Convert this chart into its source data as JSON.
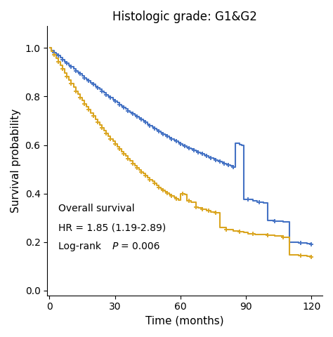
{
  "title": "Histologic grade: G1&G2",
  "xlabel": "Time (months)",
  "ylabel": "Survival probability",
  "blue_color": "#4472C4",
  "gold_color": "#DAA520",
  "ylim": [
    -0.02,
    1.09
  ],
  "xlim": [
    -1,
    125
  ],
  "yticks": [
    0.0,
    0.2,
    0.4,
    0.6,
    0.8,
    1.0
  ],
  "xticks": [
    0,
    30,
    60,
    90,
    120
  ],
  "blue_km": [
    [
      0,
      1.0
    ],
    [
      1,
      0.99
    ],
    [
      2,
      0.98
    ],
    [
      3,
      0.975
    ],
    [
      4,
      0.968
    ],
    [
      5,
      0.96
    ],
    [
      6,
      0.952
    ],
    [
      7,
      0.944
    ],
    [
      8,
      0.938
    ],
    [
      9,
      0.93
    ],
    [
      10,
      0.922
    ],
    [
      11,
      0.914
    ],
    [
      12,
      0.906
    ],
    [
      13,
      0.9
    ],
    [
      14,
      0.893
    ],
    [
      15,
      0.886
    ],
    [
      16,
      0.878
    ],
    [
      17,
      0.871
    ],
    [
      18,
      0.864
    ],
    [
      19,
      0.857
    ],
    [
      20,
      0.85
    ],
    [
      21,
      0.843
    ],
    [
      22,
      0.836
    ],
    [
      23,
      0.829
    ],
    [
      24,
      0.822
    ],
    [
      25,
      0.815
    ],
    [
      26,
      0.808
    ],
    [
      27,
      0.801
    ],
    [
      28,
      0.795
    ],
    [
      29,
      0.788
    ],
    [
      30,
      0.781
    ],
    [
      31,
      0.775
    ],
    [
      32,
      0.768
    ],
    [
      33,
      0.762
    ],
    [
      34,
      0.755
    ],
    [
      35,
      0.748
    ],
    [
      36,
      0.742
    ],
    [
      37,
      0.736
    ],
    [
      38,
      0.729
    ],
    [
      39,
      0.723
    ],
    [
      40,
      0.717
    ],
    [
      41,
      0.711
    ],
    [
      42,
      0.705
    ],
    [
      43,
      0.699
    ],
    [
      44,
      0.693
    ],
    [
      45,
      0.687
    ],
    [
      46,
      0.681
    ],
    [
      47,
      0.675
    ],
    [
      48,
      0.669
    ],
    [
      49,
      0.663
    ],
    [
      50,
      0.658
    ],
    [
      51,
      0.652
    ],
    [
      52,
      0.646
    ],
    [
      53,
      0.641
    ],
    [
      54,
      0.635
    ],
    [
      55,
      0.63
    ],
    [
      56,
      0.625
    ],
    [
      57,
      0.62
    ],
    [
      58,
      0.615
    ],
    [
      59,
      0.61
    ],
    [
      60,
      0.605
    ],
    [
      61,
      0.6
    ],
    [
      62,
      0.595
    ],
    [
      63,
      0.591
    ],
    [
      64,
      0.587
    ],
    [
      65,
      0.583
    ],
    [
      66,
      0.579
    ],
    [
      67,
      0.575
    ],
    [
      68,
      0.571
    ],
    [
      69,
      0.567
    ],
    [
      70,
      0.563
    ],
    [
      71,
      0.559
    ],
    [
      72,
      0.555
    ],
    [
      73,
      0.551
    ],
    [
      74,
      0.547
    ],
    [
      75,
      0.543
    ],
    [
      76,
      0.539
    ],
    [
      77,
      0.536
    ],
    [
      78,
      0.532
    ],
    [
      79,
      0.528
    ],
    [
      80,
      0.524
    ],
    [
      81,
      0.521
    ],
    [
      82,
      0.517
    ],
    [
      83,
      0.514
    ],
    [
      84,
      0.51
    ],
    [
      85,
      0.607
    ],
    [
      87,
      0.603
    ],
    [
      88,
      0.6
    ],
    [
      89,
      0.375
    ],
    [
      93,
      0.37
    ],
    [
      95,
      0.365
    ],
    [
      98,
      0.36
    ],
    [
      100,
      0.29
    ],
    [
      103,
      0.287
    ],
    [
      107,
      0.283
    ],
    [
      110,
      0.2
    ],
    [
      114,
      0.195
    ],
    [
      118,
      0.192
    ],
    [
      120,
      0.19
    ]
  ],
  "gold_km": [
    [
      0,
      1.0
    ],
    [
      1,
      0.987
    ],
    [
      2,
      0.973
    ],
    [
      3,
      0.958
    ],
    [
      4,
      0.943
    ],
    [
      5,
      0.928
    ],
    [
      6,
      0.913
    ],
    [
      7,
      0.898
    ],
    [
      8,
      0.883
    ],
    [
      9,
      0.868
    ],
    [
      10,
      0.853
    ],
    [
      11,
      0.838
    ],
    [
      12,
      0.823
    ],
    [
      13,
      0.81
    ],
    [
      14,
      0.797
    ],
    [
      15,
      0.784
    ],
    [
      16,
      0.771
    ],
    [
      17,
      0.758
    ],
    [
      18,
      0.745
    ],
    [
      19,
      0.732
    ],
    [
      20,
      0.72
    ],
    [
      21,
      0.707
    ],
    [
      22,
      0.695
    ],
    [
      23,
      0.683
    ],
    [
      24,
      0.671
    ],
    [
      25,
      0.659
    ],
    [
      26,
      0.648
    ],
    [
      27,
      0.637
    ],
    [
      28,
      0.626
    ],
    [
      29,
      0.615
    ],
    [
      30,
      0.604
    ],
    [
      31,
      0.594
    ],
    [
      32,
      0.584
    ],
    [
      33,
      0.574
    ],
    [
      34,
      0.564
    ],
    [
      35,
      0.554
    ],
    [
      36,
      0.544
    ],
    [
      37,
      0.534
    ],
    [
      38,
      0.524
    ],
    [
      39,
      0.515
    ],
    [
      40,
      0.506
    ],
    [
      41,
      0.498
    ],
    [
      42,
      0.49
    ],
    [
      43,
      0.482
    ],
    [
      44,
      0.474
    ],
    [
      45,
      0.466
    ],
    [
      46,
      0.458
    ],
    [
      47,
      0.45
    ],
    [
      48,
      0.442
    ],
    [
      49,
      0.434
    ],
    [
      50,
      0.426
    ],
    [
      51,
      0.42
    ],
    [
      52,
      0.414
    ],
    [
      53,
      0.408
    ],
    [
      54,
      0.402
    ],
    [
      55,
      0.396
    ],
    [
      56,
      0.39
    ],
    [
      57,
      0.384
    ],
    [
      58,
      0.378
    ],
    [
      59,
      0.372
    ],
    [
      60,
      0.4
    ],
    [
      62,
      0.395
    ],
    [
      63,
      0.37
    ],
    [
      65,
      0.365
    ],
    [
      67,
      0.345
    ],
    [
      68,
      0.34
    ],
    [
      70,
      0.335
    ],
    [
      72,
      0.33
    ],
    [
      74,
      0.325
    ],
    [
      76,
      0.32
    ],
    [
      78,
      0.26
    ],
    [
      81,
      0.25
    ],
    [
      84,
      0.245
    ],
    [
      87,
      0.242
    ],
    [
      89,
      0.24
    ],
    [
      91,
      0.235
    ],
    [
      94,
      0.232
    ],
    [
      96,
      0.23
    ],
    [
      100,
      0.228
    ],
    [
      103,
      0.225
    ],
    [
      107,
      0.22
    ],
    [
      110,
      0.148
    ],
    [
      114,
      0.144
    ],
    [
      118,
      0.141
    ],
    [
      120,
      0.138
    ]
  ],
  "blue_censors": [
    2,
    4,
    6,
    8,
    10,
    12,
    14,
    16,
    18,
    20,
    22,
    24,
    26,
    28,
    30,
    32,
    34,
    36,
    38,
    40,
    42,
    44,
    46,
    48,
    50,
    52,
    54,
    56,
    58,
    60,
    62,
    64,
    66,
    68,
    70,
    72,
    74,
    76,
    78,
    80,
    82,
    84,
    91,
    96,
    103,
    115,
    120
  ],
  "gold_censors": [
    2,
    4,
    6,
    8,
    10,
    12,
    14,
    16,
    18,
    20,
    22,
    24,
    26,
    28,
    30,
    32,
    34,
    36,
    38,
    40,
    42,
    44,
    46,
    48,
    50,
    52,
    54,
    56,
    58,
    61,
    64,
    67,
    70,
    73,
    76,
    81,
    87,
    93,
    100,
    107,
    115,
    120
  ]
}
